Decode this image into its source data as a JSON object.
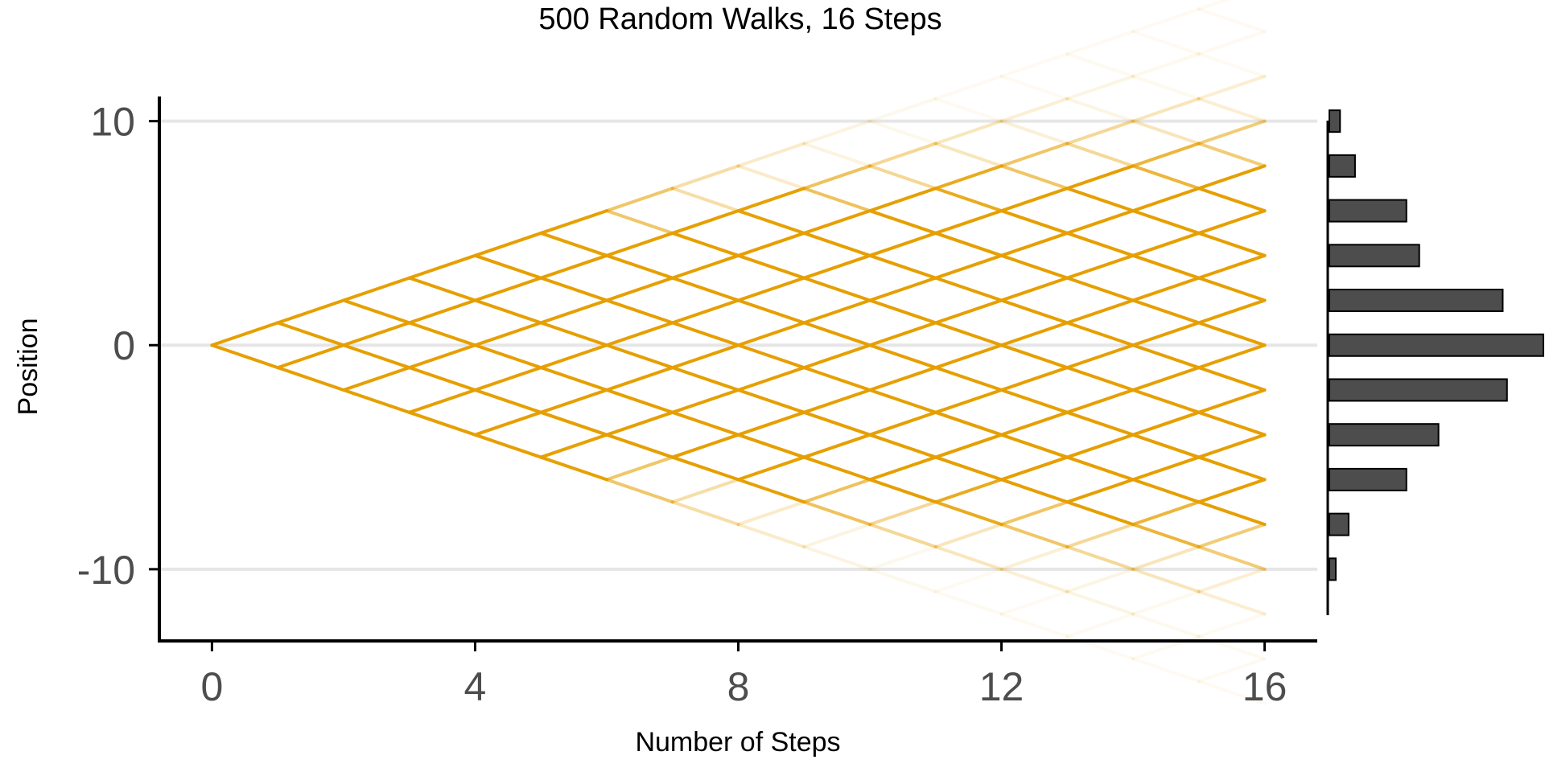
{
  "chart_data": {
    "type": "line",
    "title": "500 Random Walks, 16 Steps",
    "xlabel": "Number of Steps",
    "ylabel": "Position",
    "xlim": [
      -0.8,
      16.8
    ],
    "ylim": [
      -13.2,
      11.1
    ],
    "x_ticks": [
      0,
      4,
      8,
      12,
      16
    ],
    "x_tick_labels": [
      "0",
      "4",
      "8",
      "12",
      "16"
    ],
    "y_ticks": [
      -10,
      0,
      10
    ],
    "y_tick_labels": [
      "-10",
      "0",
      "10"
    ],
    "n_walks": 500,
    "n_steps": 16,
    "step_size": 1,
    "start_position": 0,
    "grid": "horizontal major lines",
    "line_color": "#E69F00",
    "description_of_marks": "binomial lattice of all possible walk paths; segment opacity reflects how many walks traverse it",
    "marginal_histogram": {
      "type": "bar",
      "orientation": "horizontal",
      "position": "right",
      "bar_color": "#4d4d4d",
      "bin_centers": [
        -10,
        -8,
        -6,
        -4,
        -2,
        0,
        2,
        4,
        6,
        8,
        10
      ],
      "relative_counts": [
        0.03,
        0.09,
        0.36,
        0.51,
        0.83,
        1.0,
        0.81,
        0.42,
        0.36,
        0.12,
        0.05
      ]
    }
  }
}
